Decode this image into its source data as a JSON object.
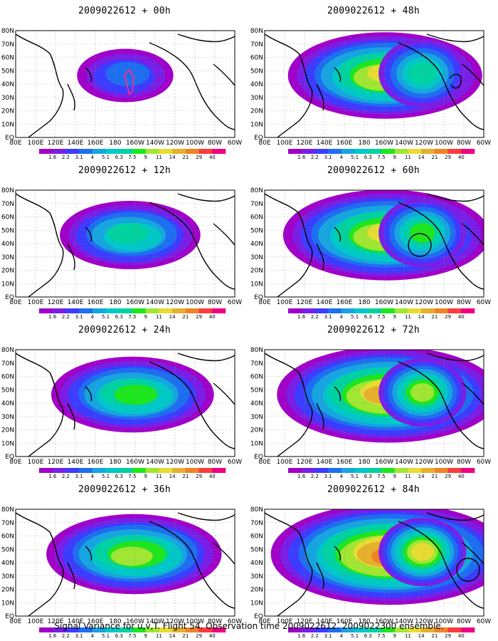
{
  "panels": [
    {
      "id": "p00",
      "title": "2009022612 + 00h",
      "level": 0.0,
      "marker": "arrow"
    },
    {
      "id": "p48",
      "title": "2009022612 + 48h",
      "level": 0.62,
      "marker": "loop"
    },
    {
      "id": "p12",
      "title": "2009022612 + 12h",
      "level": 0.28,
      "marker": "none"
    },
    {
      "id": "p60",
      "title": "2009022612 + 60h",
      "level": 0.7,
      "marker": "circle"
    },
    {
      "id": "p24",
      "title": "2009022612 + 24h",
      "level": 0.42,
      "marker": "none"
    },
    {
      "id": "p72",
      "title": "2009022612 + 72h",
      "level": 0.8,
      "marker": "none"
    },
    {
      "id": "p36",
      "title": "2009022612 + 36h",
      "level": 0.5,
      "marker": "none"
    },
    {
      "id": "p84",
      "title": "2009022612 + 84h",
      "level": 0.9,
      "marker": "circle2"
    }
  ],
  "lat_labels": [
    "80N",
    "70N",
    "60N",
    "50N",
    "40N",
    "30N",
    "20N",
    "10N",
    "EQ"
  ],
  "lon_labels": [
    "80E",
    "100E",
    "120E",
    "140E",
    "160E",
    "180",
    "160W",
    "140W",
    "120W",
    "100W",
    "80W",
    "60W"
  ],
  "colorbar": {
    "labels": [
      "1.6",
      "2.2",
      "3.1",
      "4",
      "5.1",
      "6.3",
      "7.5",
      "9",
      "11",
      "14",
      "21",
      "29",
      "40"
    ],
    "colors": [
      "#a000c8",
      "#7a1ee6",
      "#3c3cff",
      "#1e6ef0",
      "#16a5e0",
      "#00c8c8",
      "#00d2a0",
      "#1ee61e",
      "#a0e632",
      "#e6dc32",
      "#e6af2d",
      "#f08228",
      "#fa3c3c",
      "#f00082"
    ]
  },
  "caption": "Signal Variance for u,v,T. Flight 54. Observation time 2009022612. 2009022300 ensemble."
}
